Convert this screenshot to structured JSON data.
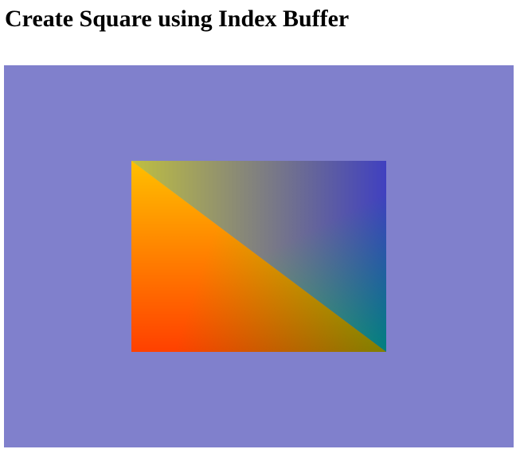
{
  "page": {
    "title": "Create Square using Index Buffer"
  },
  "canvas": {
    "clear_color": "#8080cc",
    "quad": {
      "description_colors": {
        "top_left": "#ffff00",
        "top_right": "#0000ff",
        "bottom_left": "#ff0000",
        "bottom_right": "#00ff00"
      }
    }
  }
}
